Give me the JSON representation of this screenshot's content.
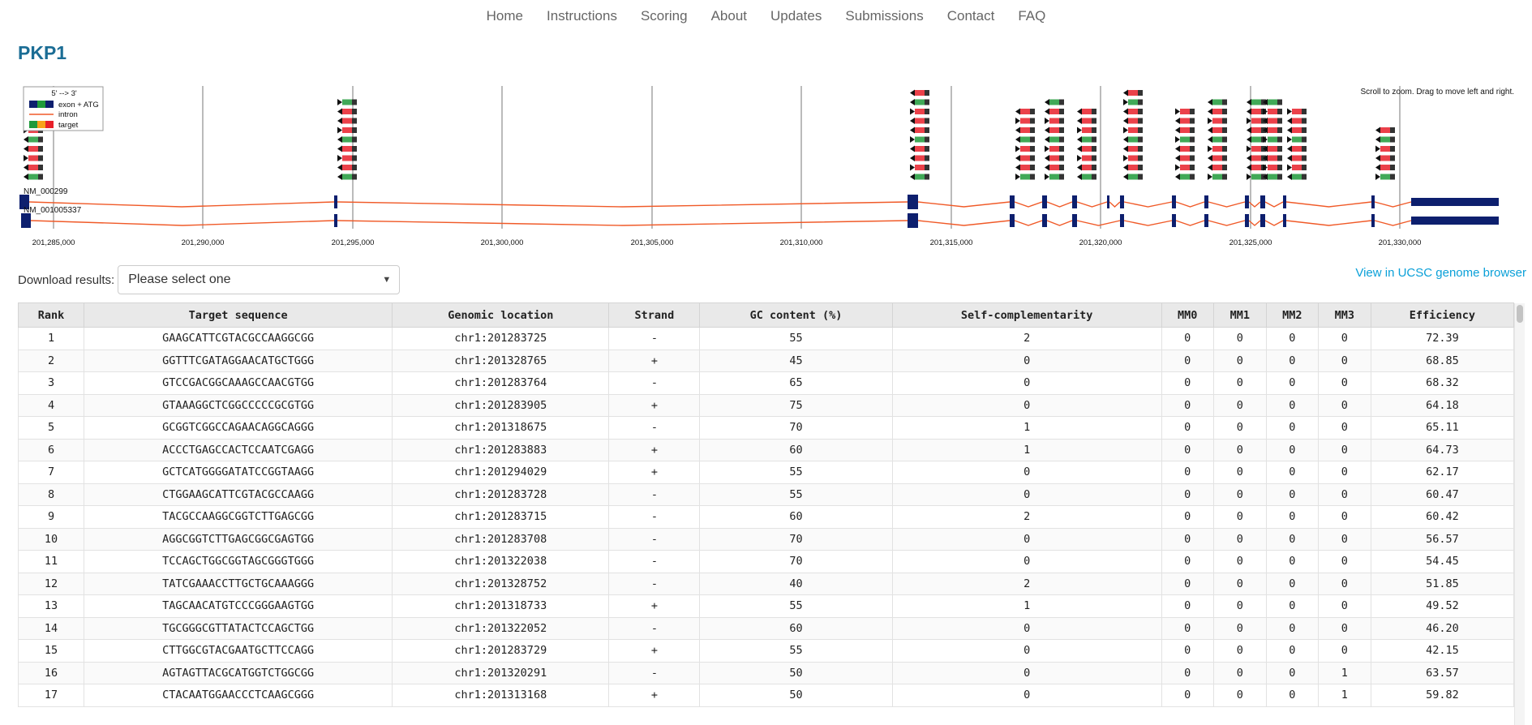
{
  "nav": [
    "Home",
    "Instructions",
    "Scoring",
    "About",
    "Updates",
    "Submissions",
    "Contact",
    "FAQ"
  ],
  "page_title": "PKP1",
  "genome_view": {
    "hint": "Scroll to zoom. Drag to move left and right.",
    "legend": {
      "direction": "5' --> 3'",
      "exon_label": "exon + ATG",
      "intron_label": "intron",
      "target_label": "target"
    },
    "transcripts": [
      "NM_000299",
      "NM_001005337"
    ],
    "axis_ticks": [
      "201,285,000",
      "201,290,000",
      "201,295,000",
      "201,300,000",
      "201,305,000",
      "201,310,000",
      "201,315,000",
      "201,320,000",
      "201,325,000",
      "201,330,000"
    ],
    "colors": {
      "exon": "#0d1f6e",
      "intron": "#f05a28",
      "target_red": "#e8202a",
      "target_green": "#1f9a3a",
      "target_orange": "#f7a21b"
    }
  },
  "download": {
    "label": "Download results:",
    "selected": "Please select one"
  },
  "ucsc_link": "View in UCSC genome browser",
  "table": {
    "headers": [
      "Rank",
      "Target sequence",
      "Genomic location",
      "Strand",
      "GC content (%)",
      "Self-complementarity",
      "MM0",
      "MM1",
      "MM2",
      "MM3",
      "Efficiency"
    ],
    "rows": [
      [
        "1",
        "GAAGCATTCGTACGCCAAGGCGG",
        "chr1:201283725",
        "-",
        "55",
        "2",
        "0",
        "0",
        "0",
        "0",
        "72.39"
      ],
      [
        "2",
        "GGTTTCGATAGGAACATGCTGGG",
        "chr1:201328765",
        "+",
        "45",
        "0",
        "0",
        "0",
        "0",
        "0",
        "68.85"
      ],
      [
        "3",
        "GTCCGACGGCAAAGCCAACGTGG",
        "chr1:201283764",
        "-",
        "65",
        "0",
        "0",
        "0",
        "0",
        "0",
        "68.32"
      ],
      [
        "4",
        "GTAAAGGCTCGGCCCCCGCGTGG",
        "chr1:201283905",
        "+",
        "75",
        "0",
        "0",
        "0",
        "0",
        "0",
        "64.18"
      ],
      [
        "5",
        "GCGGTCGGCCAGAACAGGCAGGG",
        "chr1:201318675",
        "-",
        "70",
        "1",
        "0",
        "0",
        "0",
        "0",
        "65.11"
      ],
      [
        "6",
        "ACCCTGAGCCACTCCAATCGAGG",
        "chr1:201283883",
        "+",
        "60",
        "1",
        "0",
        "0",
        "0",
        "0",
        "64.73"
      ],
      [
        "7",
        "GCTCATGGGGATATCCGGTAAGG",
        "chr1:201294029",
        "+",
        "55",
        "0",
        "0",
        "0",
        "0",
        "0",
        "62.17"
      ],
      [
        "8",
        "CTGGAAGCATTCGTACGCCAAGG",
        "chr1:201283728",
        "-",
        "55",
        "0",
        "0",
        "0",
        "0",
        "0",
        "60.47"
      ],
      [
        "9",
        "TACGCCAAGGCGGTCTTGAGCGG",
        "chr1:201283715",
        "-",
        "60",
        "2",
        "0",
        "0",
        "0",
        "0",
        "60.42"
      ],
      [
        "10",
        "AGGCGGTCTTGAGCGGCGAGTGG",
        "chr1:201283708",
        "-",
        "70",
        "0",
        "0",
        "0",
        "0",
        "0",
        "56.57"
      ],
      [
        "11",
        "TCCAGCTGGCGGTAGCGGGTGGG",
        "chr1:201322038",
        "-",
        "70",
        "0",
        "0",
        "0",
        "0",
        "0",
        "54.45"
      ],
      [
        "12",
        "TATCGAAACCTTGCTGCAAAGGG",
        "chr1:201328752",
        "-",
        "40",
        "2",
        "0",
        "0",
        "0",
        "0",
        "51.85"
      ],
      [
        "13",
        "TAGCAACATGTCCCGGGAAGTGG",
        "chr1:201318733",
        "+",
        "55",
        "1",
        "0",
        "0",
        "0",
        "0",
        "49.52"
      ],
      [
        "14",
        "TGCGGGCGTTATACTCCAGCTGG",
        "chr1:201322052",
        "-",
        "60",
        "0",
        "0",
        "0",
        "0",
        "0",
        "46.20"
      ],
      [
        "15",
        "CTTGGCGTACGAATGCTTCCAGG",
        "chr1:201283729",
        "+",
        "55",
        "0",
        "0",
        "0",
        "0",
        "0",
        "42.15"
      ],
      [
        "16",
        "AGTAGTTACGCATGGTCTGGCGG",
        "chr1:201320291",
        "-",
        "50",
        "0",
        "0",
        "0",
        "0",
        "1",
        "63.57"
      ],
      [
        "17",
        "CTACAATGGAACCCTCAAGCGGG",
        "chr1:201313168",
        "+",
        "50",
        "0",
        "0",
        "0",
        "0",
        "1",
        "59.82"
      ]
    ]
  }
}
